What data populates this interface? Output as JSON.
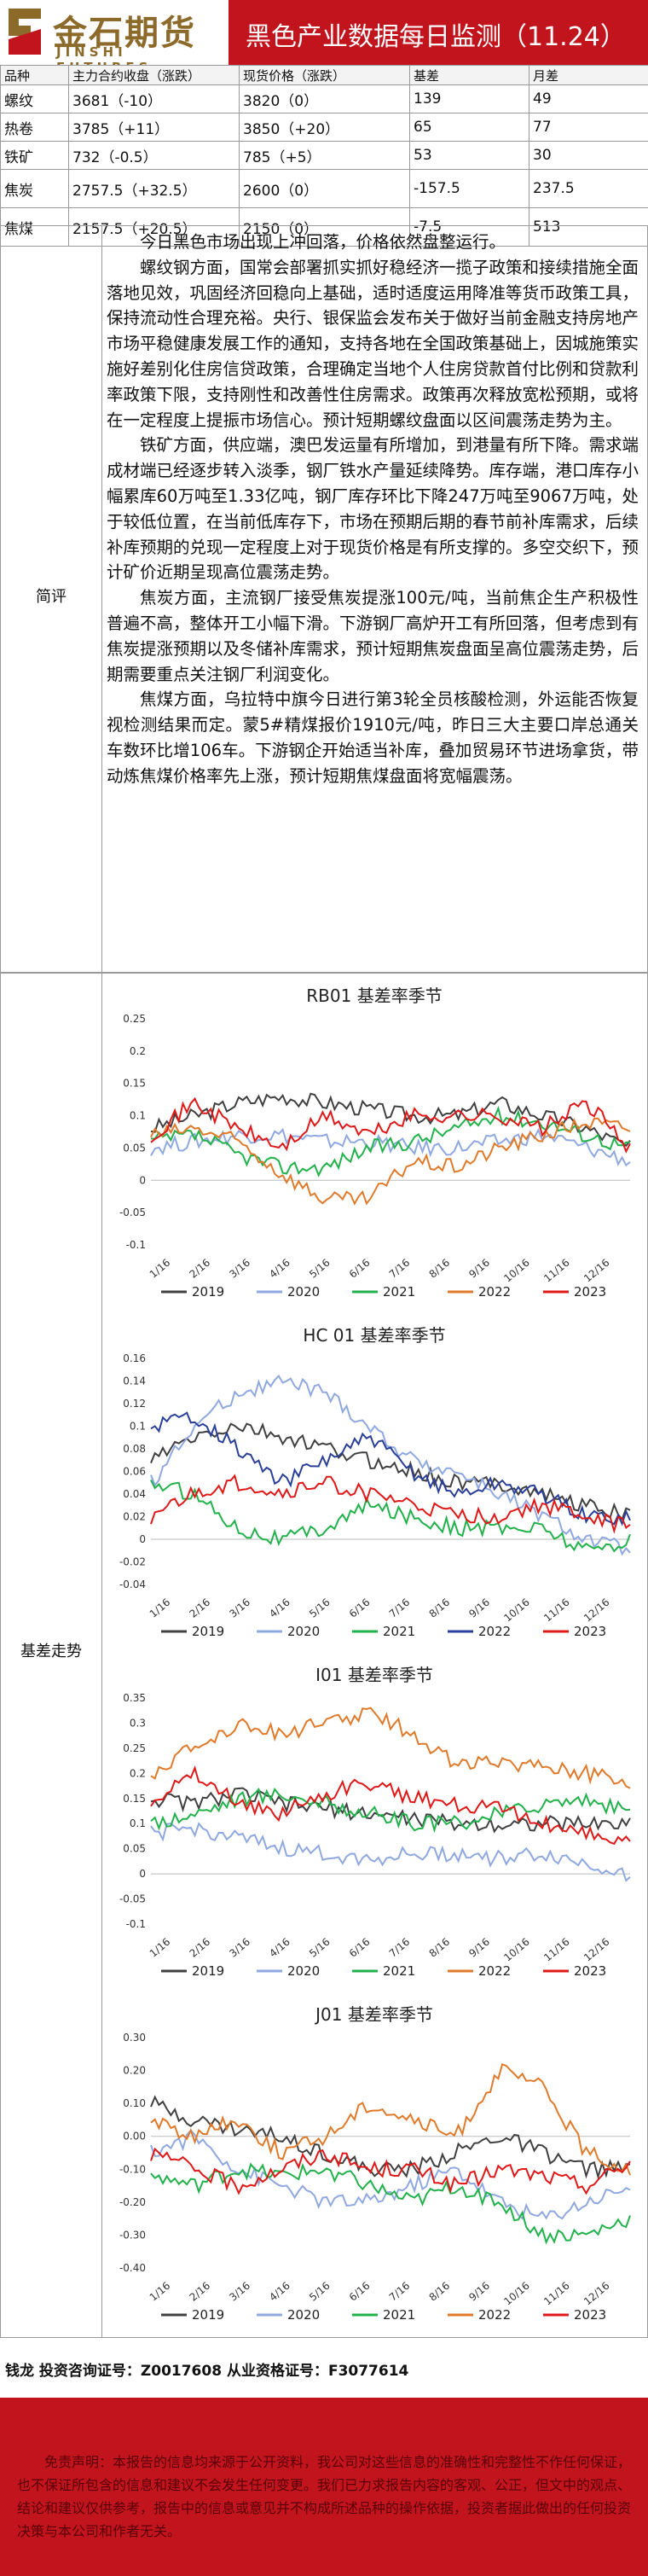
{
  "header": {
    "logo_cn": "金石期货",
    "logo_en": "JINSHI FUTURES",
    "title": "黑色产业数据每日监测（11.24）"
  },
  "table": {
    "headers": [
      "品种",
      "主力合约收盘（涨跌）",
      "现货价格（涨跌）",
      "基差",
      "月差"
    ],
    "rows": [
      [
        "螺纹",
        "3681（-10）",
        "3820（0）",
        "139",
        "49"
      ],
      [
        "热卷",
        "3785（+11）",
        "3850（+20）",
        "65",
        "77"
      ],
      [
        "铁矿",
        "732（-0.5）",
        "785（+5）",
        "53",
        "30"
      ],
      [
        "焦炭",
        "2757.5（+32.5）",
        "2600（0）",
        "-157.5",
        "237.5"
      ],
      [
        "焦煤",
        "2157.5（+20.5）",
        "2150（0）",
        "-7.5",
        "513"
      ]
    ]
  },
  "commentary": {
    "label": "简评",
    "paragraphs": [
      "今日黑色市场出现上冲回落，价格依然盘整运行。",
      "螺纹钢方面，国常会部署抓实抓好稳经济一揽子政策和接续措施全面落地见效，巩固经济回稳向上基础，适时适度运用降准等货币政策工具，保持流动性合理充裕。央行、银保监会发布关于做好当前金融支持房地产市场平稳健康发展工作的通知，支持各地在全国政策基础上，因城施策实施好差别化住房信贷政策，合理确定当地个人住房贷款首付比例和贷款利率政策下限，支持刚性和改善性住房需求。政策再次释放宽松预期，或将在一定程度上提振市场信心。预计短期螺纹盘面以区间震荡走势为主。",
      "铁矿方面，供应端，澳巴发运量有所增加，到港量有所下降。需求端成材端已经逐步转入淡季，钢厂铁水产量延续降势。库存端，港口库存小幅累库60万吨至1.33亿吨，钢厂库存环比下降247万吨至9067万吨，处于较低位置，在当前低库存下，市场在预期后期的春节前补库需求，后续补库预期的兑现一定程度上对于现货价格是有所支撑的。多空交织下，预计矿价近期呈现高位震荡走势。",
      "焦炭方面，主流钢厂接受焦炭提涨100元/吨，当前焦企生产积极性普遍不高，整体开工小幅下滑。下游钢厂高炉开工有所回落，但考虑到有焦炭提涨预期以及冬储补库需求，预计短期焦炭盘面呈高位震荡走势，后期需要重点关注钢厂利润变化。",
      "焦煤方面，乌拉特中旗今日进行第3轮全员核酸检测，外运能否恢复视检测结果而定。蒙5#精煤报价1910元/吨，昨日三大主要口岸总通关车数环比增106车。下游钢企开始适当补库，叠加贸易环节进场拿货，带动炼焦煤价格率先上涨，预计短期焦煤盘面将宽幅震荡。"
    ]
  },
  "basis_section": {
    "label": "基差走势"
  },
  "colors": {
    "2019": "#404040",
    "2020": "#8fa8e0",
    "2021": "#22b24c",
    "2022": "#e07a2a",
    "2023": "#e01818",
    "hc2022": "#2a3f9a",
    "header": "#c1141d",
    "logo": "#8c6a2a"
  },
  "x_dates": [
    "1/16",
    "2/16",
    "3/16",
    "4/16",
    "5/16",
    "6/16",
    "7/16",
    "8/16",
    "9/16",
    "10/16",
    "11/16",
    "12/16"
  ],
  "charts": [
    {
      "title": "RB01 基差率季节",
      "yticks": [
        "0.25",
        "0.2",
        "0.15",
        "0.1",
        "0.05",
        "0",
        "-0.05",
        "-0.1"
      ],
      "ymin": -0.1,
      "ymax": 0.25,
      "series": [
        {
          "name": "2019",
          "ckey": "2019",
          "values": [
            0.08,
            0.1,
            0.12,
            0.13,
            0.12,
            0.11,
            0.1,
            0.1,
            0.12,
            0.1,
            0.08,
            0.05
          ]
        },
        {
          "name": "2020",
          "ckey": "2020",
          "values": [
            0.05,
            0.06,
            0.07,
            0.07,
            0.06,
            0.06,
            0.05,
            0.05,
            0.06,
            0.07,
            0.05,
            0.03
          ]
        },
        {
          "name": "2021",
          "ckey": "2021",
          "values": [
            0.06,
            0.07,
            0.04,
            0.02,
            0.02,
            0.05,
            0.06,
            0.08,
            0.1,
            0.09,
            0.07,
            0.05
          ]
        },
        {
          "name": "2022",
          "ckey": "2022",
          "values": [
            0.07,
            0.08,
            0.06,
            0.01,
            -0.03,
            -0.03,
            0.03,
            0.02,
            0.05,
            0.07,
            0.09,
            0.08
          ]
        },
        {
          "name": "2023",
          "ckey": "2023",
          "values": [
            0.07,
            0.12,
            0.08,
            0.05,
            0.1,
            0.07,
            0.1,
            0.1,
            0.1,
            0.08,
            0.12,
            0.05
          ]
        }
      ]
    },
    {
      "title": "HC 01 基差率季节",
      "yticks": [
        "0.16",
        "0.14",
        "0.12",
        "0.1",
        "0.08",
        "0.06",
        "0.04",
        "0.02",
        "0",
        "-0.02",
        "-0.04"
      ],
      "ymin": -0.04,
      "ymax": 0.16,
      "series": [
        {
          "name": "2019",
          "ckey": "2019",
          "values": [
            0.07,
            0.09,
            0.1,
            0.09,
            0.08,
            0.07,
            0.06,
            0.05,
            0.05,
            0.04,
            0.03,
            0.02
          ]
        },
        {
          "name": "2020",
          "ckey": "2020",
          "values": [
            0.05,
            0.1,
            0.13,
            0.14,
            0.13,
            0.1,
            0.07,
            0.06,
            0.04,
            0.02,
            0.0,
            -0.01
          ]
        },
        {
          "name": "2021",
          "ckey": "2021",
          "values": [
            0.05,
            0.04,
            0.01,
            0.0,
            0.01,
            0.03,
            0.02,
            0.01,
            0.01,
            0.01,
            -0.01,
            0.0
          ]
        },
        {
          "name": "2022",
          "ckey": "2022",
          "values": [
            0.1,
            0.11,
            0.08,
            0.05,
            0.07,
            0.09,
            0.06,
            0.04,
            0.05,
            0.04,
            0.02,
            0.02
          ]
        },
        {
          "name": "2023",
          "ckey": "2023",
          "values": [
            0.02,
            0.04,
            0.05,
            0.04,
            0.05,
            0.04,
            0.03,
            0.02,
            0.02,
            0.03,
            0.02,
            0.01
          ]
        }
      ]
    },
    {
      "title": "I01 基差率季节",
      "yticks": [
        "0.35",
        "0.3",
        "0.25",
        "0.2",
        "0.15",
        "0.1",
        "0.05",
        "0",
        "-0.05",
        "-0.1"
      ],
      "ymin": -0.1,
      "ymax": 0.35,
      "series": [
        {
          "name": "2019",
          "ckey": "2019",
          "values": [
            0.15,
            0.14,
            0.16,
            0.14,
            0.13,
            0.12,
            0.11,
            0.1,
            0.1,
            0.1,
            0.1,
            0.1
          ]
        },
        {
          "name": "2020",
          "ckey": "2020",
          "values": [
            0.08,
            0.09,
            0.07,
            0.05,
            0.04,
            0.03,
            0.04,
            0.04,
            0.03,
            0.04,
            0.02,
            0.0
          ]
        },
        {
          "name": "2021",
          "ckey": "2021",
          "values": [
            0.1,
            0.12,
            0.15,
            0.16,
            0.14,
            0.12,
            0.1,
            0.1,
            0.12,
            0.14,
            0.15,
            0.12
          ]
        },
        {
          "name": "2022",
          "ckey": "2022",
          "values": [
            0.2,
            0.25,
            0.3,
            0.28,
            0.3,
            0.32,
            0.28,
            0.22,
            0.22,
            0.22,
            0.2,
            0.18
          ]
        },
        {
          "name": "2023",
          "ckey": "2023",
          "values": [
            0.15,
            0.2,
            0.14,
            0.12,
            0.16,
            0.18,
            0.15,
            0.14,
            0.13,
            0.1,
            0.08,
            0.06
          ]
        }
      ]
    },
    {
      "title": "J01 基差率季节",
      "yticks": [
        "0.30",
        "0.20",
        "0.10",
        "0.00",
        "-0.10",
        "-0.20",
        "-0.30",
        "-0.40"
      ],
      "ymin": -0.4,
      "ymax": 0.3,
      "series": [
        {
          "name": "2019",
          "ckey": "2019",
          "values": [
            0.1,
            0.05,
            0.02,
            0.0,
            -0.05,
            -0.1,
            -0.1,
            -0.05,
            0.0,
            -0.05,
            -0.1,
            -0.1
          ]
        },
        {
          "name": "2020",
          "ckey": "2020",
          "values": [
            -0.05,
            0.0,
            -0.1,
            -0.15,
            -0.2,
            -0.2,
            -0.15,
            -0.1,
            -0.2,
            -0.25,
            -0.2,
            -0.15
          ]
        },
        {
          "name": "2021",
          "ckey": "2021",
          "values": [
            -0.12,
            -0.15,
            -0.1,
            -0.12,
            -0.1,
            -0.15,
            -0.2,
            -0.15,
            -0.2,
            -0.3,
            -0.3,
            -0.25
          ]
        },
        {
          "name": "2022",
          "ckey": "2022",
          "values": [
            0.05,
            0.0,
            0.05,
            -0.05,
            0.0,
            0.1,
            0.05,
            0.0,
            0.2,
            0.15,
            -0.05,
            -0.1
          ]
        },
        {
          "name": "2023",
          "ckey": "2023",
          "values": [
            -0.05,
            -0.1,
            -0.15,
            -0.1,
            -0.05,
            -0.1,
            -0.1,
            -0.15,
            -0.1,
            -0.12,
            -0.15,
            -0.08
          ]
        }
      ]
    }
  ],
  "footer": {
    "author": "钱龙 投资咨询证号：Z0017608 从业资格证号：F3077614"
  },
  "disclaimer": "免责声明：本报告的信息均来源于公开资料，我公司对这些信息的准确性和完整性不作任何保证，也不保证所包含的信息和建议不会发生任何变更。我们已力求报告内容的客观、公正，但文中的观点、结论和建议仅供参考，报告中的信息或意见并不构成所述品种的操作依据，投资者据此做出的任何投资决策与本公司和作者无关。"
}
